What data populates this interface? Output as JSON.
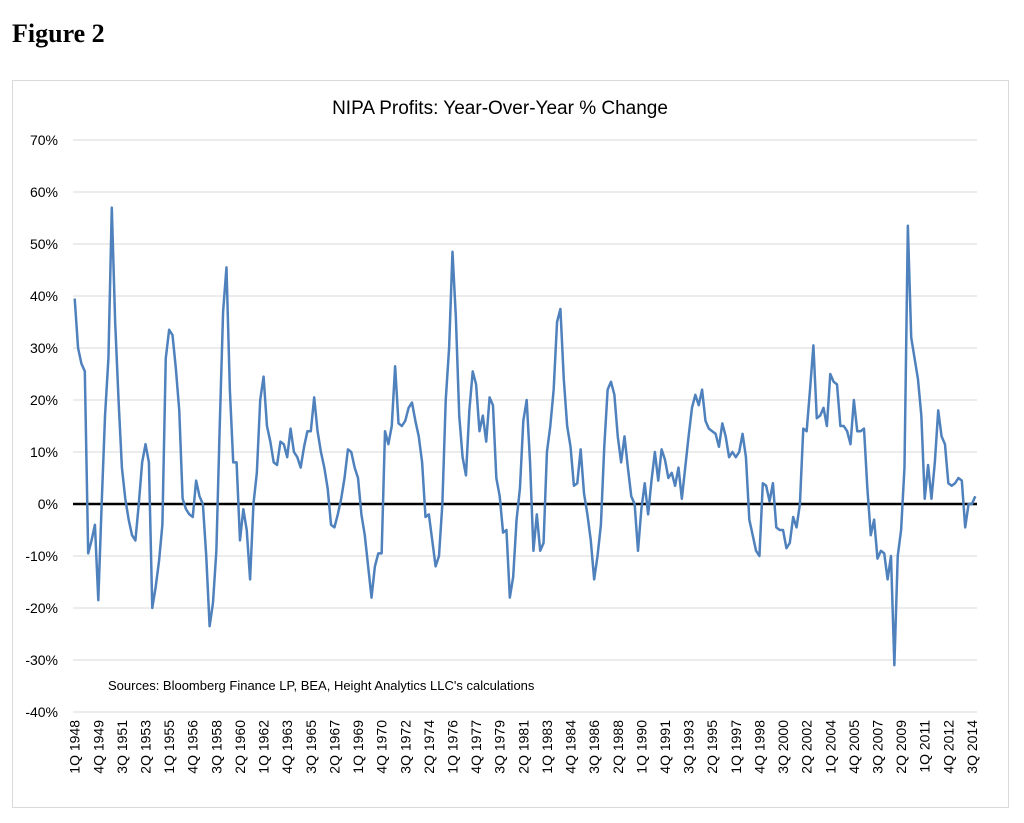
{
  "header": {
    "title": "Figure 2"
  },
  "chart_data": {
    "type": "line",
    "title": "NIPA Profits: Year-Over-Year % Change",
    "annotation": "Sources: Bloomberg Finance LP, BEA, Height Analytics LLC's calculations",
    "color": "#4f81bd",
    "grid": true,
    "zero_line": true,
    "ylim": [
      -40,
      70
    ],
    "yticks": [
      {
        "value": -40,
        "label": "-40%"
      },
      {
        "value": -30,
        "label": "-30%"
      },
      {
        "value": -20,
        "label": "-20%"
      },
      {
        "value": -10,
        "label": "-10%"
      },
      {
        "value": 0,
        "label": "0%"
      },
      {
        "value": 10,
        "label": "10%"
      },
      {
        "value": 20,
        "label": "20%"
      },
      {
        "value": 30,
        "label": "30%"
      },
      {
        "value": 40,
        "label": "40%"
      },
      {
        "value": 50,
        "label": "50%"
      },
      {
        "value": 60,
        "label": "60%"
      },
      {
        "value": 70,
        "label": "70%"
      }
    ],
    "categories": [
      "1Q 1948",
      null,
      null,
      null,
      null,
      null,
      null,
      "4Q 1949",
      null,
      null,
      null,
      null,
      null,
      null,
      "3Q 1951",
      null,
      null,
      null,
      null,
      null,
      null,
      "2Q 1953",
      null,
      null,
      null,
      null,
      null,
      null,
      "1Q 1955",
      null,
      null,
      null,
      null,
      null,
      null,
      "4Q 1956",
      null,
      null,
      null,
      null,
      null,
      null,
      "3Q 1958",
      null,
      null,
      null,
      null,
      null,
      null,
      "2Q 1960",
      null,
      null,
      null,
      null,
      null,
      null,
      "1Q 1962",
      null,
      null,
      null,
      null,
      null,
      null,
      "4Q 1963",
      null,
      null,
      null,
      null,
      null,
      null,
      "3Q 1965",
      null,
      null,
      null,
      null,
      null,
      null,
      "2Q 1967",
      null,
      null,
      null,
      null,
      null,
      null,
      "1Q 1969",
      null,
      null,
      null,
      null,
      null,
      null,
      "4Q 1970",
      null,
      null,
      null,
      null,
      null,
      null,
      "3Q 1972",
      null,
      null,
      null,
      null,
      null,
      null,
      "2Q 1974",
      null,
      null,
      null,
      null,
      null,
      null,
      "1Q 1976",
      null,
      null,
      null,
      null,
      null,
      null,
      "4Q 1977",
      null,
      null,
      null,
      null,
      null,
      null,
      "3Q 1979",
      null,
      null,
      null,
      null,
      null,
      null,
      "2Q 1981",
      null,
      null,
      null,
      null,
      null,
      null,
      "1Q 1983",
      null,
      null,
      null,
      null,
      null,
      null,
      "4Q 1984",
      null,
      null,
      null,
      null,
      null,
      null,
      "3Q 1986",
      null,
      null,
      null,
      null,
      null,
      null,
      "2Q 1988",
      null,
      null,
      null,
      null,
      null,
      null,
      "1Q 1990",
      null,
      null,
      null,
      null,
      null,
      null,
      "4Q 1991",
      null,
      null,
      null,
      null,
      null,
      null,
      "3Q 1993",
      null,
      null,
      null,
      null,
      null,
      null,
      "2Q 1995",
      null,
      null,
      null,
      null,
      null,
      null,
      "1Q 1997",
      null,
      null,
      null,
      null,
      null,
      null,
      "4Q 1998",
      null,
      null,
      null,
      null,
      null,
      null,
      "3Q 2000",
      null,
      null,
      null,
      null,
      null,
      null,
      "2Q 2002",
      null,
      null,
      null,
      null,
      null,
      null,
      "1Q 2004",
      null,
      null,
      null,
      null,
      null,
      null,
      "4Q 2005",
      null,
      null,
      null,
      null,
      null,
      null,
      "3Q 2007",
      null,
      null,
      null,
      null,
      null,
      null,
      "2Q 2009",
      null,
      null,
      null,
      null,
      null,
      null,
      "1Q 2011",
      null,
      null,
      null,
      null,
      null,
      null,
      "4Q 2012",
      null,
      null,
      null,
      null,
      null,
      null,
      "3Q 2014",
      null
    ],
    "values": [
      39.5,
      30,
      27,
      25.5,
      -9.5,
      -7,
      -4,
      -18.5,
      0,
      17,
      28,
      57,
      35,
      20,
      7,
      1,
      -3,
      -6,
      -7,
      0,
      8,
      11.5,
      8,
      -20,
      -16,
      -11,
      -4,
      28,
      33.5,
      32.5,
      26,
      18,
      1,
      -1,
      -2,
      -2.5,
      4.5,
      1.5,
      0,
      -10,
      -23.5,
      -19,
      -9,
      15,
      37,
      45.5,
      22,
      8,
      8,
      -7,
      -1,
      -5,
      -14.5,
      0,
      6,
      20,
      24.5,
      15,
      12,
      8,
      7.5,
      12,
      11.5,
      9,
      14.5,
      10,
      9,
      7,
      11,
      14,
      14,
      20.5,
      14,
      10,
      7,
      3,
      -4,
      -4.5,
      -2,
      1,
      5,
      10.5,
      10,
      7,
      5,
      -2,
      -6,
      -12,
      -18,
      -12,
      -9.5,
      -9.5,
      14,
      11.5,
      15,
      26.5,
      15.5,
      15,
      16,
      18.5,
      19.5,
      16,
      13,
      8,
      -2.5,
      -2,
      -7,
      -12,
      -10,
      0,
      20,
      30,
      48.5,
      36,
      17,
      9,
      5.5,
      18,
      25.5,
      23,
      14,
      17,
      12,
      20.5,
      19,
      5,
      1.5,
      -5.5,
      -5,
      -18,
      -14,
      -3,
      3,
      16,
      20,
      8,
      -9,
      -2,
      -9,
      -7.5,
      10,
      15,
      22,
      35,
      37.5,
      24,
      15,
      11,
      3.5,
      4,
      10.5,
      2,
      -2,
      -7,
      -14.5,
      -10,
      -4,
      11,
      22,
      23.5,
      21,
      13,
      8,
      13,
      7,
      1.5,
      0,
      -9,
      -1,
      4,
      -2,
      4.5,
      10,
      4.5,
      10.5,
      8.5,
      5,
      6,
      3.5,
      7,
      1,
      7,
      13,
      18.5,
      21,
      19,
      22,
      16,
      14.5,
      14,
      13.5,
      11,
      15.5,
      13,
      9,
      10,
      9,
      10,
      13.5,
      9,
      -3,
      -6,
      -9,
      -10,
      4,
      3.5,
      0.5,
      4,
      -4.5,
      -5,
      -5,
      -8.5,
      -7.5,
      -2.5,
      -4.5,
      0,
      14.5,
      14,
      22,
      30.5,
      16.5,
      17,
      18.5,
      15,
      25,
      23.5,
      23,
      15,
      15,
      14,
      11.5,
      20,
      14,
      14,
      14.5,
      3,
      -6,
      -3,
      -10.5,
      -9,
      -9.5,
      -14.5,
      -10,
      -31,
      -10,
      -5,
      7,
      53.5,
      32,
      28,
      24,
      17,
      1,
      7.5,
      1,
      8,
      18,
      13,
      11.5,
      4,
      3.5,
      4,
      5,
      4.5,
      -4.5,
      0,
      0,
      1.5
    ]
  }
}
